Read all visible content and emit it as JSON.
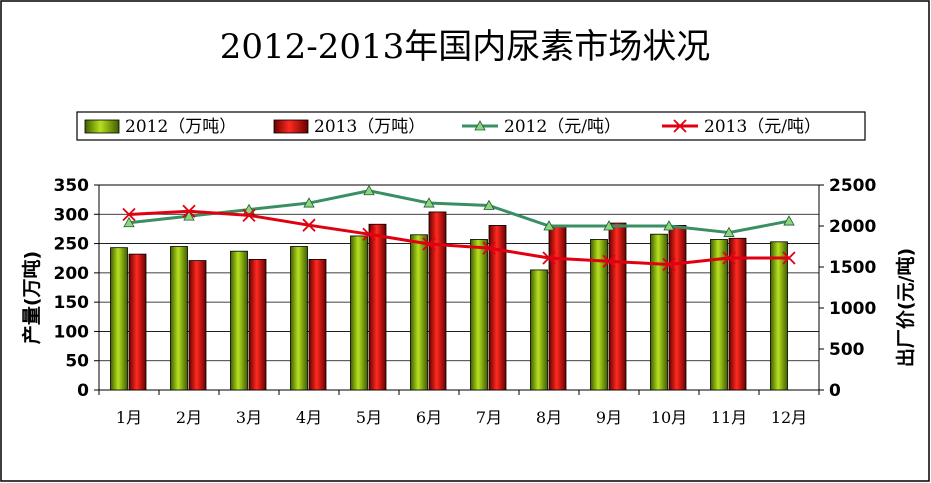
{
  "chart_data": {
    "type": "bar",
    "title": "2012-2013年国内尿素市场状况",
    "categories": [
      "1月",
      "2月",
      "3月",
      "4月",
      "5月",
      "6月",
      "7月",
      "8月",
      "9月",
      "10月",
      "11月",
      "12月"
    ],
    "bar_series": [
      {
        "name": "2012（万吨）",
        "color": "#7db000",
        "values": [
          243,
          245,
          237,
          245,
          263,
          265,
          257,
          205,
          257,
          266,
          257,
          253
        ]
      },
      {
        "name": "2013（万吨）",
        "color": "#e0000a",
        "values": [
          232,
          221,
          223,
          223,
          283,
          304,
          281,
          280,
          285,
          281,
          259,
          null
        ]
      }
    ],
    "line_series": [
      {
        "name": "2012（元/吨）",
        "color": "#3a8f62",
        "marker": "triangle",
        "values": [
          2040,
          2120,
          2200,
          2280,
          2430,
          2280,
          2250,
          2000,
          2000,
          2000,
          1920,
          2060
        ]
      },
      {
        "name": "2013（元/吨）",
        "color": "#e00010",
        "marker": "x",
        "values": [
          2140,
          2180,
          2130,
          2010,
          1900,
          1780,
          1730,
          1610,
          1570,
          1530,
          1610,
          1610
        ]
      }
    ],
    "y_left": {
      "label": "产量(万吨)",
      "min": 0,
      "max": 350,
      "step": 50
    },
    "y_right": {
      "label": "出厂价(元/吨)",
      "min": 0,
      "max": 2500,
      "step": 500
    },
    "grid": true,
    "legend_position": "top"
  }
}
